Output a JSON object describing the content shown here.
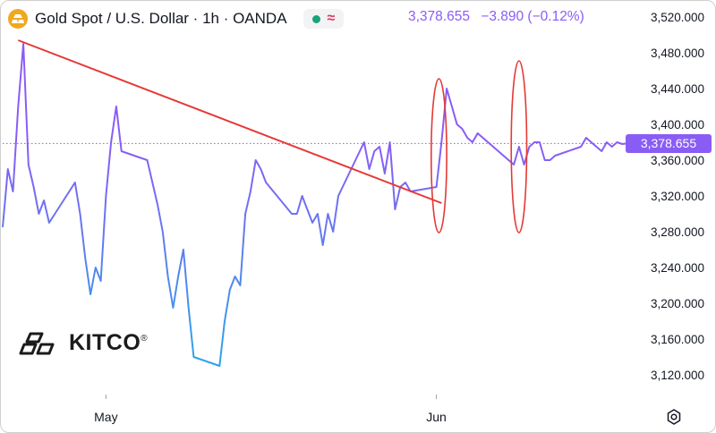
{
  "header": {
    "title": "Gold Spot / U.S. Dollar · 1h · OANDA",
    "status_dot_color": "#1aa37a",
    "indicator_glyph": "≈",
    "indicator_color": "#e8365d",
    "last_price": "3,378.655",
    "change": "−3.890 (−0.12%)"
  },
  "price_label": "3,378.655",
  "logo": {
    "text": "KITCO",
    "mark": "®"
  },
  "icons": {
    "instrument": "gold-bar-icon",
    "settings": "gear-icon"
  },
  "colors": {
    "line_top": "#8a5cf6",
    "line_bottom": "#2fa2e8",
    "trendline": "#e53935",
    "circle": "#e53935",
    "price_marker": "#8a5cf6"
  },
  "chart_data": {
    "type": "line",
    "series": [
      {
        "x": [
          "2025-04-21",
          "2025-04-21 12:00",
          "2025-04-22",
          "2025-04-22 12:00",
          "2025-04-23",
          "2025-04-23 12:00",
          "2025-04-24",
          "2025-04-24 12:00",
          "2025-04-25",
          "2025-04-25 12:00",
          "2025-04-28",
          "2025-04-28 12:00",
          "2025-04-29",
          "2025-04-29 12:00",
          "2025-04-30",
          "2025-04-30 12:00",
          "2025-05-01",
          "2025-05-01 12:00",
          "2025-05-02",
          "2025-05-02 12:00",
          "2025-05-05",
          "2025-05-05 12:00",
          "2025-05-06",
          "2025-05-06 12:00",
          "2025-05-07",
          "2025-05-07 12:00",
          "2025-05-08",
          "2025-05-08 12:00",
          "2025-05-09",
          "2025-05-09 12:00",
          "2025-05-12",
          "2025-05-12 12:00",
          "2025-05-13",
          "2025-05-13 12:00",
          "2025-05-14",
          "2025-05-14 12:00",
          "2025-05-15",
          "2025-05-15 12:00",
          "2025-05-16",
          "2025-05-16 12:00",
          "2025-05-19",
          "2025-05-19 12:00",
          "2025-05-20",
          "2025-05-20 12:00",
          "2025-05-21",
          "2025-05-21 12:00",
          "2025-05-22",
          "2025-05-22 12:00",
          "2025-05-23",
          "2025-05-23 12:00",
          "2025-05-26",
          "2025-05-26 12:00",
          "2025-05-27",
          "2025-05-27 12:00",
          "2025-05-28",
          "2025-05-28 12:00",
          "2025-05-29",
          "2025-05-29 12:00",
          "2025-05-30",
          "2025-05-30 12:00",
          "2025-06-02",
          "2025-06-02 12:00",
          "2025-06-03",
          "2025-06-03 12:00",
          "2025-06-04",
          "2025-06-04 12:00",
          "2025-06-05",
          "2025-06-05 12:00",
          "2025-06-06",
          "2025-06-06 12:00",
          "2025-06-09",
          "2025-06-09 12:00",
          "2025-06-10",
          "2025-06-10 12:00",
          "2025-06-11",
          "2025-06-11 12:00",
          "2025-06-12",
          "2025-06-12 12:00",
          "2025-06-13",
          "2025-06-13 12:00",
          "2025-06-16",
          "2025-06-16 12:00",
          "2025-06-17",
          "2025-06-17 12:00",
          "2025-06-18",
          "2025-06-18 12:00",
          "2025-06-19",
          "2025-06-19 12:00",
          "2025-06-20",
          "2025-06-20 12:00"
        ],
        "values": [
          3285,
          3350,
          3325,
          3420,
          3490,
          3355,
          3330,
          3300,
          3315,
          3290,
          3335,
          3300,
          3250,
          3210,
          3240,
          3225,
          3320,
          3380,
          3420,
          3370,
          3360,
          3335,
          3310,
          3280,
          3230,
          3195,
          3230,
          3260,
          3195,
          3140,
          3130,
          3180,
          3215,
          3230,
          3220,
          3300,
          3325,
          3360,
          3350,
          3335,
          3300,
          3300,
          3320,
          3305,
          3290,
          3300,
          3265,
          3300,
          3280,
          3320,
          3380,
          3350,
          3370,
          3375,
          3345,
          3380,
          3305,
          3330,
          3335,
          3325,
          3330,
          3380,
          3440,
          3420,
          3400,
          3395,
          3385,
          3380,
          3390,
          3385,
          3360,
          3355,
          3375,
          3355,
          3375,
          3380,
          3380,
          3360,
          3360,
          3365,
          3375,
          3385,
          3380,
          3375,
          3370,
          3380,
          3375,
          3380,
          3378,
          3378.655
        ]
      }
    ],
    "x_tick_labels": [
      "May",
      "Jun"
    ],
    "y_tick_labels": [
      "3,520.000",
      "3,480.000",
      "3,440.000",
      "3,400.000",
      "3,360.000",
      "3,320.000",
      "3,280.000",
      "3,240.000",
      "3,200.000",
      "3,160.000",
      "3,120.000"
    ],
    "ylim": [
      3100,
      3530
    ],
    "last_value": 3378.655,
    "grid": false,
    "annotations": [
      {
        "type": "trendline",
        "from": {
          "x": "2025-04-22 12:00",
          "y": 3494
        },
        "to": {
          "x": "2025-06-02 12:00",
          "y": 3312
        }
      },
      {
        "type": "ellipse",
        "center": {
          "x": "2025-06-02 06:00",
          "y": 3365
        },
        "span": {
          "x_hours": 36,
          "y": 86
        }
      },
      {
        "type": "ellipse",
        "center": {
          "x": "2025-06-10",
          "y": 3375
        },
        "span": {
          "x_hours": 36,
          "y": 96
        }
      }
    ]
  }
}
